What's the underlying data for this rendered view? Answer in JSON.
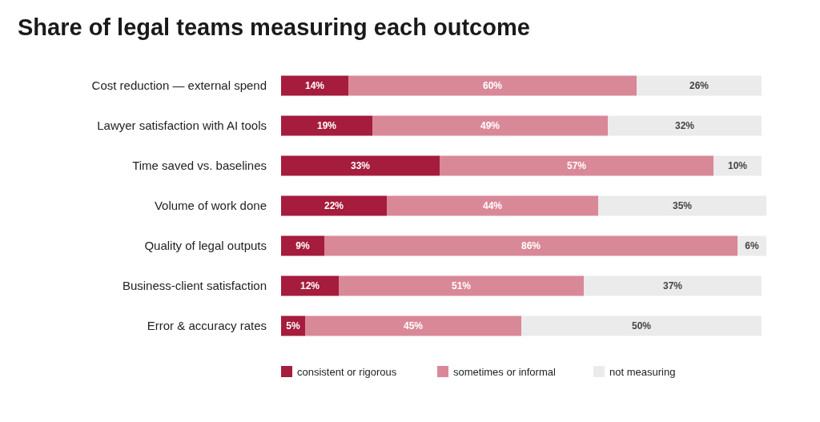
{
  "chart_data": {
    "type": "bar",
    "orientation": "horizontal",
    "stacked": true,
    "legend": "bottom",
    "title": "Share of legal teams measuring each outcome",
    "categories": [
      "Cost reduction — external spend",
      "Lawyer satisfaction with AI tools",
      "Time saved vs. baselines",
      "Volume of work done",
      "Quality of legal outputs",
      "Business-client satisfaction",
      "Error & accuracy rates"
    ],
    "series": [
      {
        "name": "consistent or rigorous",
        "color": "#a51c3c",
        "values": [
          14,
          19,
          33,
          22,
          9,
          12,
          5
        ],
        "value_labels": [
          "14%",
          "19%",
          "33%",
          "22%",
          "9%",
          "12%",
          "5%"
        ]
      },
      {
        "name": "sometimes or informal",
        "color": "#d98898",
        "values": [
          60,
          49,
          57,
          44,
          86,
          51,
          45
        ],
        "value_labels": [
          "60%",
          "49%",
          "57%",
          "44%",
          "86%",
          "51%",
          "45%"
        ]
      },
      {
        "name": "not measuring",
        "color": "#ebebeb",
        "values": [
          26,
          32,
          10,
          35,
          6,
          37,
          50
        ],
        "value_labels": [
          "26%",
          "32%",
          "10%",
          "35%",
          "6%",
          "37%",
          "50%"
        ]
      }
    ]
  }
}
